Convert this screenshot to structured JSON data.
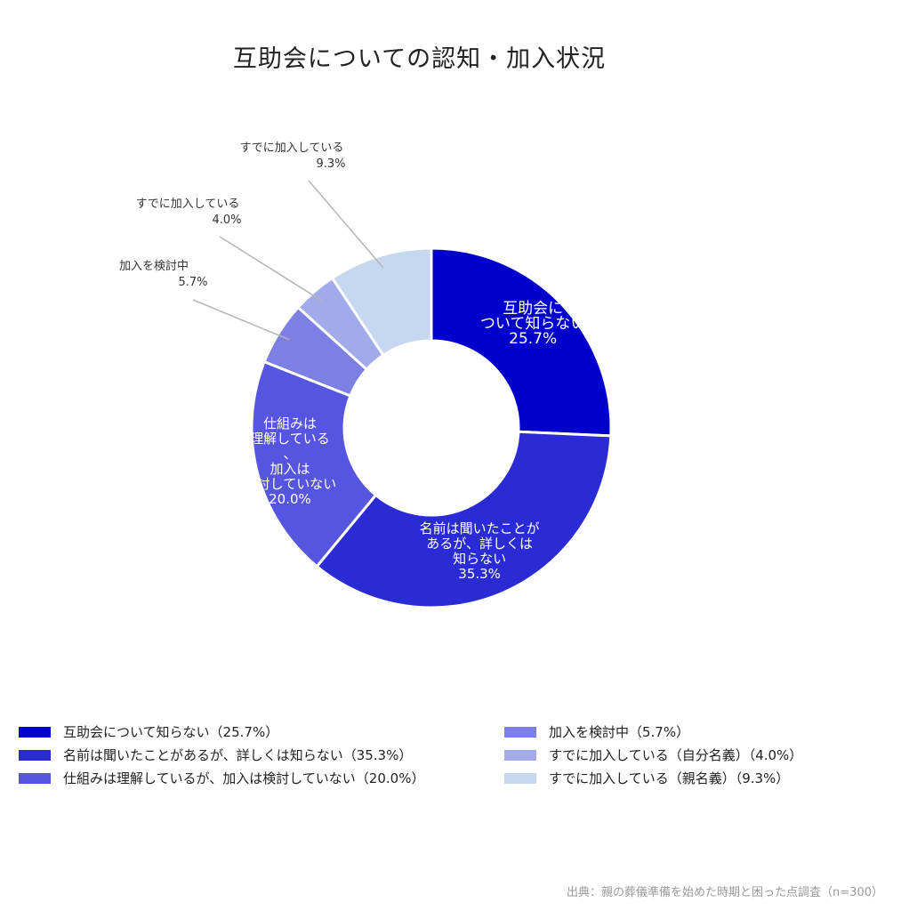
{
  "chart_data": {
    "type": "pie",
    "variant": "donut",
    "title": "互助会についての認知・加入状況",
    "unit": "%",
    "slices": [
      {
        "legend": "互助会について知らない（25.7%）",
        "label_lines": [
          "互助会に",
          "ついて知らない",
          "25.7%"
        ],
        "value": 25.7,
        "color": "#0000cc",
        "label_position": "inside"
      },
      {
        "legend": "名前は聞いたことがあるが、詳しくは知らない（35.3%）",
        "label_lines": [
          "名前は聞いたことが",
          "あるが、詳しくは",
          "知らない",
          "35.3%"
        ],
        "value": 35.3,
        "color": "#2b2bd6",
        "label_position": "inside"
      },
      {
        "legend": "仕組みは理解しているが、加入は検討していない（20.0%）",
        "label_lines": [
          "仕組みは",
          "理解している",
          "、",
          "加入は",
          "検討していない",
          "20.0%"
        ],
        "value": 20.0,
        "color": "#5555df",
        "label_position": "inside"
      },
      {
        "legend": "加入を検討中（5.7%）",
        "label_lines": [
          "加入を検討中",
          "5.7%"
        ],
        "value": 5.7,
        "color": "#7b80e2",
        "label_position": "outside"
      },
      {
        "legend": "すでに加入している（自分名義）（4.0%）",
        "label_lines": [
          "すでに加入している",
          "4.0%"
        ],
        "value": 4.0,
        "color": "#a1abea",
        "label_position": "outside"
      },
      {
        "legend": "すでに加入している（親名義）（9.3%）",
        "label_lines": [
          "すでに加入している",
          "9.3%"
        ],
        "value": 9.3,
        "color": "#c6d7f0",
        "label_position": "outside"
      }
    ],
    "legend_placement": "bottom"
  },
  "source": "出典：親の葬儀準備を始めた時期と困った点調査（n=300）"
}
